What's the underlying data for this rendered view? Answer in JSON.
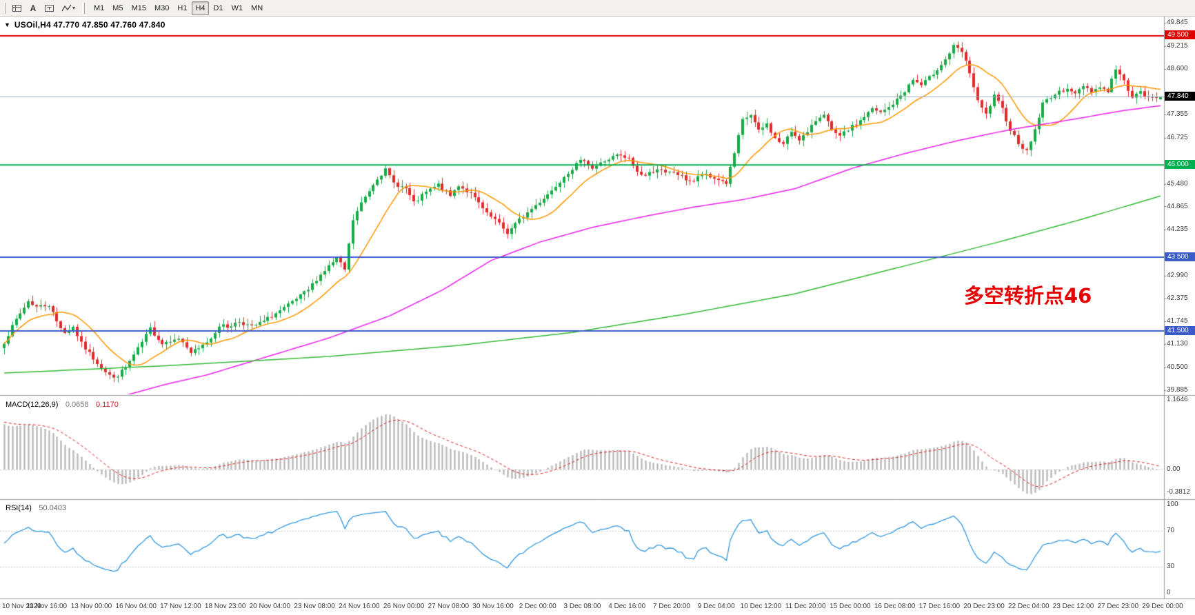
{
  "toolbar": {
    "text_tool_label": "A",
    "timeframes": [
      "M1",
      "M5",
      "M15",
      "M30",
      "H1",
      "H4",
      "D1",
      "W1",
      "MN"
    ],
    "active_timeframe": "H4"
  },
  "chart_data": {
    "type": "candlestick",
    "collapse_arrow": "▼",
    "symbol_title": "USOil,H4 47.770 47.850 47.760 47.840",
    "price_range": {
      "min": 39.885,
      "max": 49.845
    },
    "y_ticks": [
      "49.845",
      "49.215",
      "48.600",
      "47.355",
      "46.725",
      "45.480",
      "44.865",
      "44.235",
      "42.990",
      "42.375",
      "41.745",
      "41.130",
      "40.500",
      "39.885"
    ],
    "x_labels": [
      "10 Nov 2020",
      "11 Nov 16:00",
      "13 Nov 00:00",
      "16 Nov 04:00",
      "17 Nov 12:00",
      "18 Nov 23:00",
      "20 Nov 04:00",
      "23 Nov 08:00",
      "24 Nov 16:00",
      "26 Nov 00:00",
      "27 Nov 08:00",
      "30 Nov 16:00",
      "2 Dec 00:00",
      "3 Dec 08:00",
      "4 Dec 16:00",
      "7 Dec 20:00",
      "9 Dec 04:00",
      "10 Dec 12:00",
      "11 Dec 20:00",
      "15 Dec 00:00",
      "16 Dec 08:00",
      "17 Dec 16:00",
      "20 Dec 23:00",
      "22 Dec 04:00",
      "23 Dec 12:00",
      "27 Dec 23:00",
      "29 Dec 00:00"
    ],
    "levels": [
      {
        "price": 49.5,
        "label": "49.500",
        "color": "#e00000",
        "width": 2
      },
      {
        "price": 46.0,
        "label": "46.000",
        "color": "#00b050",
        "width": 2
      },
      {
        "price": 43.5,
        "label": "43.500",
        "color": "#3b5bc8",
        "width": 2
      },
      {
        "price": 41.5,
        "label": "41.500",
        "color": "#3b5bc8",
        "width": 2
      }
    ],
    "current_price": {
      "value": 47.84,
      "label": "47.840",
      "tag_bg": "#000000",
      "line_color": "#9aa7bd"
    },
    "annotation": {
      "text": "多空转折点46",
      "color": "#e60000"
    },
    "candles": {
      "count": 286,
      "seed": 7,
      "up_color": "#17ab45",
      "down_color": "#e02b2b",
      "last": [
        47.77,
        47.85,
        47.76,
        47.84
      ],
      "anchors": [
        [
          0,
          41.2
        ],
        [
          3,
          41.8
        ],
        [
          6,
          42.3
        ],
        [
          8,
          42.15
        ],
        [
          11,
          42.2
        ],
        [
          13,
          41.75
        ],
        [
          15,
          41.45
        ],
        [
          17,
          41.6
        ],
        [
          19,
          41.15
        ],
        [
          22,
          40.75
        ],
        [
          25,
          40.4
        ],
        [
          27,
          40.2
        ],
        [
          30,
          40.5
        ],
        [
          33,
          41.0
        ],
        [
          36,
          41.55
        ],
        [
          39,
          41.15
        ],
        [
          42,
          41.3
        ],
        [
          44,
          41.2
        ],
        [
          46,
          40.9
        ],
        [
          48,
          41.0
        ],
        [
          51,
          41.3
        ],
        [
          53,
          41.65
        ],
        [
          55,
          41.6
        ],
        [
          58,
          41.75
        ],
        [
          61,
          41.6
        ],
        [
          64,
          41.75
        ],
        [
          66,
          41.9
        ],
        [
          69,
          42.1
        ],
        [
          72,
          42.35
        ],
        [
          75,
          42.6
        ],
        [
          77,
          42.9
        ],
        [
          80,
          43.25
        ],
        [
          82,
          43.45
        ],
        [
          84,
          43.15
        ],
        [
          86,
          44.5
        ],
        [
          88,
          44.95
        ],
        [
          90,
          45.3
        ],
        [
          92,
          45.65
        ],
        [
          94,
          45.85
        ],
        [
          96,
          45.5
        ],
        [
          99,
          45.35
        ],
        [
          101,
          44.95
        ],
        [
          104,
          45.25
        ],
        [
          107,
          45.45
        ],
        [
          110,
          45.15
        ],
        [
          112,
          45.45
        ],
        [
          115,
          45.2
        ],
        [
          117,
          44.95
        ],
        [
          119,
          44.65
        ],
        [
          121,
          44.5
        ],
        [
          124,
          44.15
        ],
        [
          127,
          44.5
        ],
        [
          130,
          44.8
        ],
        [
          132,
          45.0
        ],
        [
          135,
          45.3
        ],
        [
          138,
          45.7
        ],
        [
          141,
          46.0
        ],
        [
          143,
          46.15
        ],
        [
          145,
          45.9
        ],
        [
          148,
          46.1
        ],
        [
          151,
          46.25
        ],
        [
          154,
          46.15
        ],
        [
          156,
          45.8
        ],
        [
          158,
          45.7
        ],
        [
          161,
          45.9
        ],
        [
          163,
          45.75
        ],
        [
          165,
          45.8
        ],
        [
          168,
          45.6
        ],
        [
          170,
          45.55
        ],
        [
          172,
          45.75
        ],
        [
          174,
          45.65
        ],
        [
          176,
          45.6
        ],
        [
          178,
          45.5
        ],
        [
          180,
          46.3
        ],
        [
          182,
          47.2
        ],
        [
          184,
          47.35
        ],
        [
          186,
          46.9
        ],
        [
          188,
          47.1
        ],
        [
          190,
          46.7
        ],
        [
          192,
          46.55
        ],
        [
          194,
          46.9
        ],
        [
          196,
          46.7
        ],
        [
          198,
          46.85
        ],
        [
          200,
          47.2
        ],
        [
          202,
          47.4
        ],
        [
          204,
          46.9
        ],
        [
          206,
          46.75
        ],
        [
          208,
          46.95
        ],
        [
          210,
          47.1
        ],
        [
          212,
          47.3
        ],
        [
          214,
          47.5
        ],
        [
          216,
          47.4
        ],
        [
          218,
          47.55
        ],
        [
          220,
          47.75
        ],
        [
          222,
          48.0
        ],
        [
          224,
          48.3
        ],
        [
          226,
          48.15
        ],
        [
          228,
          48.35
        ],
        [
          230,
          48.6
        ],
        [
          232,
          48.85
        ],
        [
          234,
          49.2
        ],
        [
          236,
          49.05
        ],
        [
          238,
          48.5
        ],
        [
          240,
          47.7
        ],
        [
          242,
          47.35
        ],
        [
          244,
          47.85
        ],
        [
          246,
          47.5
        ],
        [
          248,
          46.95
        ],
        [
          250,
          46.6
        ],
        [
          252,
          46.35
        ],
        [
          254,
          46.95
        ],
        [
          256,
          47.65
        ],
        [
          258,
          47.85
        ],
        [
          260,
          47.95
        ],
        [
          262,
          48.1
        ],
        [
          264,
          47.9
        ],
        [
          266,
          48.15
        ],
        [
          268,
          48.0
        ],
        [
          270,
          48.1
        ],
        [
          272,
          48.0
        ],
        [
          274,
          48.6
        ],
        [
          276,
          48.25
        ],
        [
          278,
          47.85
        ],
        [
          280,
          47.95
        ],
        [
          282,
          47.8
        ],
        [
          285,
          47.84
        ]
      ]
    },
    "ma": [
      {
        "name": "fast",
        "color": "#ff9600",
        "type": "sma",
        "period": 13
      },
      {
        "name": "medium",
        "color": "#ea1fea",
        "type": "anchors",
        "anchors": [
          [
            30,
            39.75
          ],
          [
            40,
            40.05
          ],
          [
            50,
            40.3
          ],
          [
            65,
            40.8
          ],
          [
            80,
            41.3
          ],
          [
            95,
            41.9
          ],
          [
            108,
            42.6
          ],
          [
            120,
            43.4
          ],
          [
            132,
            43.9
          ],
          [
            145,
            44.3
          ],
          [
            158,
            44.6
          ],
          [
            170,
            44.85
          ],
          [
            182,
            45.05
          ],
          [
            195,
            45.35
          ],
          [
            209,
            45.9
          ],
          [
            222,
            46.3
          ],
          [
            235,
            46.65
          ],
          [
            248,
            46.95
          ],
          [
            262,
            47.2
          ],
          [
            275,
            47.45
          ],
          [
            285,
            47.6
          ]
        ]
      },
      {
        "name": "slow",
        "color": "#32b832",
        "type": "anchors",
        "anchors": [
          [
            0,
            40.35
          ],
          [
            40,
            40.55
          ],
          [
            80,
            40.8
          ],
          [
            112,
            41.1
          ],
          [
            140,
            41.45
          ],
          [
            168,
            41.95
          ],
          [
            195,
            42.5
          ],
          [
            220,
            43.2
          ],
          [
            245,
            43.9
          ],
          [
            265,
            44.5
          ],
          [
            285,
            45.15
          ]
        ]
      }
    ],
    "macd": {
      "label": "MACD(12,26,9)",
      "value_main": "0.0658",
      "value_signal": "0.1170",
      "axis": [
        "1.1646",
        "0.00",
        "-0.3812"
      ],
      "range": {
        "min": -0.45,
        "max": 1.1646
      },
      "hist_color": "#b9b9b9",
      "signal_color": "#e02020"
    },
    "rsi": {
      "label": "RSI(14)",
      "value": "50.0403",
      "axis": [
        "100",
        "70",
        "30",
        "0"
      ],
      "levels": [
        70,
        30
      ],
      "color": "#2f96e0"
    }
  }
}
